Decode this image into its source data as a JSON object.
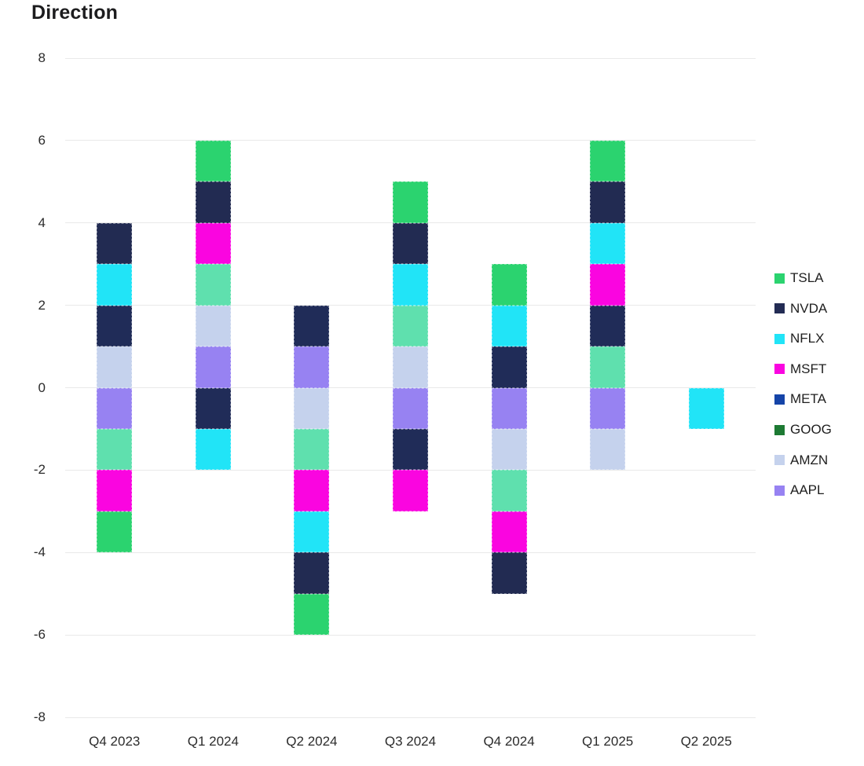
{
  "page": {
    "background": "#ffffff"
  },
  "chart_data": {
    "type": "bar",
    "variant": "diverging-stacked",
    "title": "Direction",
    "categories": [
      "Q4 2023",
      "Q1 2024",
      "Q2 2024",
      "Q3 2024",
      "Q4 2024",
      "Q1 2025",
      "Q2 2025"
    ],
    "series": [
      {
        "name": "AAPL",
        "color": "#9782f2",
        "values": [
          -1,
          1,
          1,
          -1,
          -1,
          -1,
          0
        ]
      },
      {
        "name": "AMZN",
        "color": "#c5d2ed",
        "values": [
          1,
          1,
          -1,
          1,
          -1,
          -1,
          0
        ]
      },
      {
        "name": "GOOG",
        "color": "#5fe0ae",
        "values": [
          -1,
          1,
          -1,
          1,
          -1,
          1,
          0
        ]
      },
      {
        "name": "META",
        "color": "#202c58",
        "values": [
          1,
          -1,
          1,
          -1,
          1,
          1,
          0
        ]
      },
      {
        "name": "MSFT",
        "color": "#fa05e0",
        "values": [
          -1,
          1,
          -1,
          -1,
          -1,
          1,
          0
        ]
      },
      {
        "name": "NFLX",
        "color": "#21e4f7",
        "values": [
          1,
          -1,
          -1,
          1,
          1,
          1,
          -1
        ]
      },
      {
        "name": "NVDA",
        "color": "#222b52",
        "values": [
          1,
          1,
          -1,
          1,
          -1,
          1,
          0
        ]
      },
      {
        "name": "TSLA",
        "color": "#2bd36f",
        "values": [
          -1,
          1,
          -1,
          1,
          1,
          1,
          0
        ]
      }
    ],
    "legend": {
      "position": "right",
      "entries": [
        {
          "label": "TSLA",
          "color": "#2bd36f"
        },
        {
          "label": "NVDA",
          "color": "#232c54"
        },
        {
          "label": "NFLX",
          "color": "#21e4f7"
        },
        {
          "label": "MSFT",
          "color": "#fa05e0"
        },
        {
          "label": "META",
          "color": "#1544a8"
        },
        {
          "label": "GOOG",
          "color": "#1d7a33"
        },
        {
          "label": "AMZN",
          "color": "#c5d2ed"
        },
        {
          "label": "AAPL",
          "color": "#9782f2"
        }
      ]
    },
    "yticks": [
      8,
      6,
      4,
      2,
      0,
      -2,
      -4,
      -6,
      -8
    ],
    "ylim": [
      -8,
      8
    ],
    "xlabel": "",
    "ylabel": "",
    "grid": "horizontal",
    "gridline_color": "#e9e9e9",
    "axis_text_color": "#2b2b2b",
    "unit_per_segment": 1
  }
}
